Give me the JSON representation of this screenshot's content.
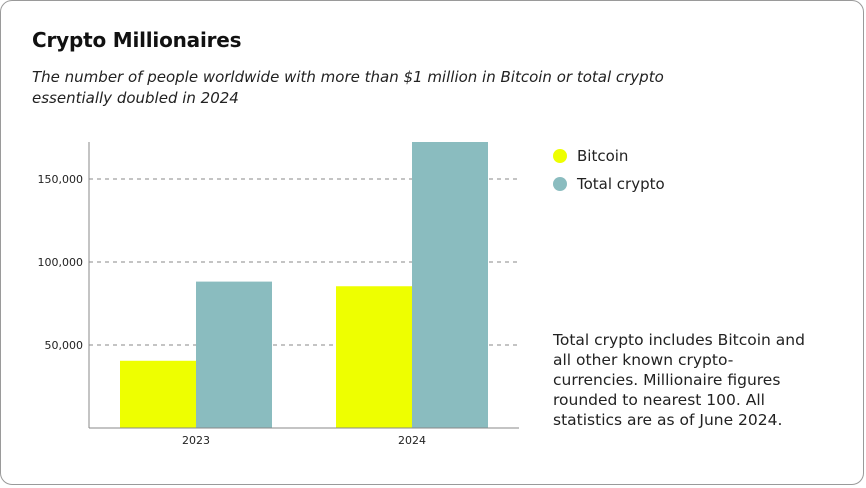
{
  "colors": {
    "bitcoin": "#eeff00",
    "total": "#8abcbf",
    "grid": "#8a8a8a",
    "axis": "#888888"
  },
  "chart_data": {
    "type": "bar",
    "title": "Crypto Millionaires",
    "subtitle": "The number of people worldwide with more than $1 million in Bitcoin or total crypto essentially doubled in 2024",
    "categories": [
      "2023",
      "2024"
    ],
    "series": [
      {
        "name": "Bitcoin",
        "values": [
          40500,
          85400
        ]
      },
      {
        "name": "Total crypto",
        "values": [
          88200,
          172300
        ]
      }
    ],
    "yticks": [
      50000,
      100000,
      150000
    ],
    "ytick_labels": [
      "50,000",
      "100,000",
      "150,000"
    ],
    "ylim": [
      0,
      172300
    ],
    "grid": true,
    "legend_position": "right"
  },
  "note": "Total crypto includes Bitcoin and all other known crypto-currencies. Millionaire figures rounded to nearest 100. All statistics are as of June 2024."
}
